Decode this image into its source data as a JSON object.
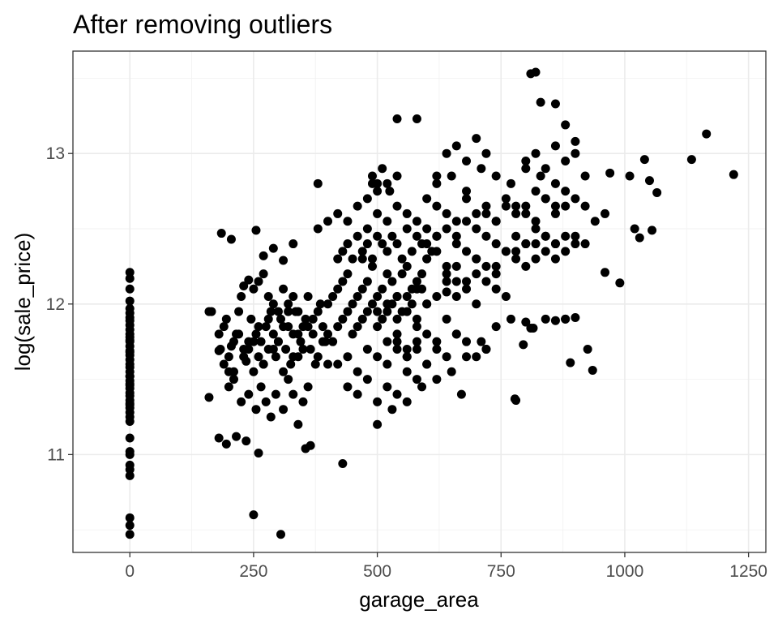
{
  "chart_data": {
    "type": "scatter",
    "title": "After removing outliers",
    "xlabel": "garage_area",
    "ylabel": "log(sale_price)",
    "xlim": [
      -115,
      1285
    ],
    "ylim": [
      10.35,
      13.68
    ],
    "x_ticks": [
      0,
      250,
      500,
      750,
      1000,
      1250
    ],
    "x_tick_labels": [
      "0",
      "250",
      "500",
      "750",
      "1000",
      "1250"
    ],
    "y_ticks": [
      11,
      12,
      13
    ],
    "y_tick_labels": [
      "11",
      "12",
      "13"
    ],
    "grid": true,
    "legend": "none",
    "point_color": "#000000",
    "series": [
      {
        "x": [
          0,
          0,
          0,
          0,
          0,
          0,
          0,
          0,
          0,
          0,
          0,
          0,
          0,
          0,
          0,
          0,
          0,
          0,
          0,
          0,
          0,
          0,
          0,
          0,
          0,
          0,
          0,
          0,
          0,
          0,
          0,
          0,
          0,
          0,
          0,
          0,
          0,
          0,
          0,
          0,
          0,
          0,
          0,
          0,
          0,
          0,
          160,
          165,
          180,
          183,
          190,
          195,
          200,
          205,
          210,
          215,
          220,
          225,
          230,
          235,
          240,
          245,
          250,
          255,
          260,
          265,
          270,
          275,
          280,
          285,
          290,
          295,
          300,
          305,
          310,
          315,
          320,
          325,
          330,
          335,
          340,
          345,
          350,
          355,
          360,
          365,
          370,
          375,
          380,
          385,
          390,
          395,
          180,
          190,
          200,
          210,
          220,
          230,
          240,
          250,
          260,
          270,
          280,
          290,
          300,
          310,
          320,
          330,
          340,
          350,
          360,
          370,
          380,
          390,
          400,
          200,
          210,
          225,
          240,
          255,
          265,
          275,
          285,
          295,
          310,
          320,
          330,
          340,
          350,
          360,
          250,
          260,
          270,
          280,
          290,
          300,
          310,
          320,
          330,
          340,
          400,
          410,
          420,
          430,
          440,
          450,
          460,
          470,
          480,
          490,
          500,
          510,
          520,
          530,
          540,
          550,
          560,
          570,
          580,
          590,
          600,
          400,
          410,
          420,
          430,
          440,
          450,
          460,
          470,
          480,
          490,
          500,
          510,
          520,
          530,
          540,
          550,
          560,
          570,
          580,
          590,
          420,
          430,
          440,
          450,
          460,
          470,
          480,
          490,
          500,
          510,
          520,
          530,
          540,
          550,
          560,
          570,
          580,
          590,
          600,
          610,
          620,
          420,
          440,
          460,
          480,
          500,
          520,
          540,
          560,
          580,
          600,
          440,
          460,
          480,
          500,
          520,
          540,
          560,
          580,
          380,
          400,
          420,
          440,
          460,
          480,
          500,
          520,
          540,
          560,
          580,
          600,
          620,
          640,
          660,
          680,
          600,
          620,
          640,
          660,
          680,
          700,
          720,
          740,
          760,
          780,
          800,
          820,
          840,
          860,
          880,
          600,
          620,
          640,
          660,
          680,
          700,
          720,
          740,
          760,
          780,
          800,
          820,
          840,
          860,
          620,
          650,
          680,
          710,
          740,
          770,
          800,
          830,
          860,
          640,
          660,
          680,
          700,
          720,
          740,
          760,
          780,
          800,
          820,
          840,
          860,
          880,
          900,
          500,
          520,
          540,
          560,
          580,
          600,
          620,
          640,
          660,
          680,
          700,
          720,
          740,
          760,
          520,
          540,
          560,
          580,
          600,
          620,
          640,
          660,
          700,
          720,
          740,
          760,
          780,
          800,
          820,
          840,
          860,
          880,
          900,
          920,
          940,
          960,
          800,
          820,
          840,
          860,
          880,
          900,
          920,
          780,
          800,
          820,
          840,
          860,
          880,
          900,
          920,
          540,
          560,
          580,
          600,
          620,
          640,
          660,
          680,
          700,
          720,
          490,
          500,
          510,
          525,
          540,
          480,
          500,
          520,
          640,
          660,
          680,
          700,
          720,
          860,
          880,
          900,
          925,
          935,
          960,
          970,
          990,
          1010,
          1020,
          1050,
          1030,
          1040,
          1055,
          1065,
          1135,
          1165,
          1220,
          810,
          820,
          830,
          860,
          880,
          900,
          780,
          795,
          800,
          810,
          880,
          890,
          250,
          305,
          355,
          365,
          430,
          670,
          720,
          778,
          815,
          840,
          380,
          470,
          490,
          540,
          580,
          620,
          160,
          185,
          205,
          230,
          240,
          255,
          270,
          290,
          310,
          330,
          180,
          195,
          215,
          235,
          260,
          600,
          640,
          660,
          700,
          740,
          500,
          530,
          560,
          590,
          620,
          650,
          680,
          710,
          740,
          770
        ],
        "y": [
          10.47,
          10.53,
          10.58,
          10.86,
          10.9,
          10.93,
          11.0,
          11.02,
          11.11,
          11.22,
          11.25,
          11.28,
          11.31,
          11.34,
          11.36,
          11.39,
          11.41,
          11.44,
          11.47,
          11.49,
          11.52,
          11.55,
          11.58,
          11.6,
          11.63,
          11.66,
          11.69,
          11.72,
          11.75,
          11.78,
          11.8,
          11.83,
          11.86,
          11.89,
          11.91,
          11.94,
          11.97,
          12.02,
          12.1,
          12.17,
          12.21,
          11.33,
          11.46,
          11.52,
          11.68,
          11.76,
          11.38,
          11.95,
          11.8,
          11.7,
          11.85,
          11.9,
          11.65,
          11.72,
          11.55,
          11.8,
          11.95,
          12.05,
          11.7,
          11.62,
          11.75,
          11.9,
          11.55,
          11.8,
          11.65,
          11.75,
          11.6,
          11.85,
          11.7,
          11.95,
          11.8,
          11.65,
          11.75,
          11.9,
          11.55,
          11.7,
          11.85,
          11.6,
          11.8,
          11.95,
          11.65,
          11.75,
          11.85,
          11.9,
          12.05,
          11.7,
          11.8,
          11.6,
          11.95,
          12.0,
          11.85,
          11.75,
          11.69,
          11.6,
          11.55,
          11.75,
          11.8,
          11.65,
          11.7,
          11.75,
          11.85,
          11.6,
          11.9,
          11.7,
          11.75,
          11.85,
          11.95,
          11.65,
          11.8,
          11.7,
          11.85,
          11.9,
          11.65,
          11.75,
          11.6,
          11.45,
          11.5,
          11.35,
          11.4,
          11.3,
          11.45,
          11.35,
          11.25,
          11.4,
          11.3,
          11.5,
          11.4,
          11.2,
          11.35,
          11.45,
          12.1,
          12.15,
          12.2,
          12.05,
          12.0,
          11.95,
          12.1,
          12.0,
          12.05,
          11.95,
          12.0,
          12.05,
          12.1,
          12.15,
          12.2,
          12.0,
          12.05,
          12.1,
          12.15,
          12.25,
          12.05,
          12.1,
          12.2,
          12.15,
          12.05,
          12.2,
          12.25,
          12.1,
          12.15,
          12.2,
          12.3,
          11.8,
          11.75,
          11.85,
          11.9,
          11.95,
          11.8,
          11.85,
          11.9,
          11.95,
          12.0,
          11.85,
          11.9,
          11.95,
          12.0,
          11.9,
          11.95,
          12.05,
          12.0,
          11.9,
          12.1,
          12.3,
          12.35,
          12.4,
          12.3,
          12.45,
          12.35,
          12.4,
          12.3,
          12.45,
          12.4,
          12.35,
          12.45,
          12.4,
          12.3,
          12.5,
          12.35,
          12.45,
          12.4,
          12.5,
          12.35,
          12.45,
          11.6,
          11.65,
          11.55,
          11.7,
          11.65,
          11.6,
          11.75,
          11.65,
          11.7,
          11.6,
          11.45,
          11.4,
          11.5,
          11.35,
          11.45,
          11.4,
          11.55,
          11.5,
          12.5,
          12.55,
          12.6,
          12.55,
          12.65,
          12.5,
          12.6,
          12.55,
          12.65,
          12.6,
          12.55,
          12.7,
          12.65,
          12.6,
          12.55,
          12.7,
          12.4,
          12.45,
          12.5,
          12.45,
          12.55,
          12.5,
          12.6,
          12.55,
          12.65,
          12.6,
          12.65,
          12.55,
          12.7,
          12.6,
          12.65,
          12.3,
          12.35,
          12.25,
          12.4,
          12.35,
          12.3,
          12.45,
          12.4,
          12.35,
          12.45,
          12.4,
          12.5,
          12.45,
          12.4,
          12.8,
          12.85,
          12.75,
          12.9,
          12.85,
          12.8,
          12.9,
          12.85,
          12.8,
          12.2,
          12.25,
          12.15,
          12.3,
          12.25,
          12.2,
          12.35,
          12.3,
          12.25,
          12.4,
          12.35,
          12.3,
          12.45,
          12.4,
          11.95,
          12.0,
          12.05,
          11.95,
          12.1,
          12.0,
          12.05,
          12.15,
          12.05,
          12.1,
          12.0,
          12.15,
          12.1,
          12.05,
          11.75,
          11.8,
          11.7,
          11.85,
          11.8,
          11.75,
          11.9,
          11.8,
          12.6,
          12.65,
          12.55,
          12.7,
          12.65,
          12.6,
          12.75,
          12.7,
          12.65,
          12.75,
          12.7,
          12.65,
          12.55,
          12.6,
          12.95,
          13.0,
          12.9,
          13.05,
          12.95,
          13.0,
          12.85,
          12.35,
          12.4,
          12.3,
          12.45,
          12.4,
          12.35,
          12.45,
          12.4,
          11.7,
          11.65,
          11.75,
          11.6,
          11.7,
          11.65,
          11.8,
          11.75,
          11.65,
          11.7,
          12.85,
          12.8,
          12.9,
          12.75,
          12.85,
          12.7,
          12.75,
          12.8,
          13.0,
          13.05,
          12.95,
          13.1,
          13.0,
          11.89,
          11.9,
          11.91,
          11.7,
          11.56,
          12.21,
          12.87,
          12.14,
          12.85,
          12.5,
          12.82,
          12.44,
          12.96,
          12.49,
          12.74,
          12.96,
          13.13,
          12.86,
          13.53,
          13.54,
          13.34,
          13.33,
          13.19,
          13.08,
          11.36,
          11.73,
          11.88,
          11.84,
          11.9,
          11.61,
          10.6,
          10.47,
          11.04,
          11.06,
          10.94,
          11.4,
          11.7,
          11.37,
          11.84,
          11.9,
          12.8,
          12.3,
          12.8,
          13.23,
          13.23,
          12.85,
          11.95,
          12.47,
          12.43,
          12.12,
          12.16,
          12.49,
          12.32,
          12.37,
          12.29,
          12.4,
          11.11,
          11.07,
          11.12,
          11.09,
          11.01,
          12.0,
          12.08,
          12.15,
          12.2,
          12.25,
          11.2,
          11.3,
          11.35,
          11.45,
          11.5,
          11.55,
          11.65,
          11.75,
          11.85,
          11.9
        ]
      }
    ]
  }
}
